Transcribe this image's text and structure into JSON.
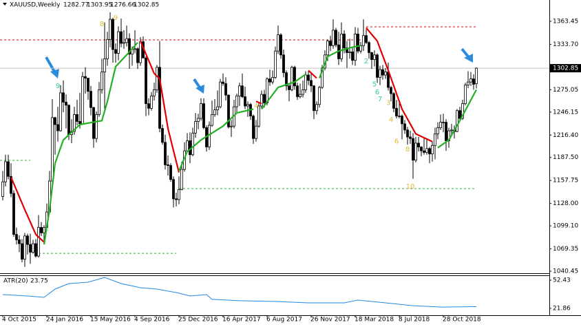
{
  "chart_data": {
    "type": "candlestick",
    "title": "XAUUSD,Weekly",
    "up_color": "#ffffff",
    "down_color": "#000000",
    "wick_color": "#000000",
    "xlim": [
      -1,
      198.5
    ],
    "ylim": [
      1037.8,
      1391.0
    ],
    "xticks": [
      {
        "value": 0,
        "label": "4 Oct 2015"
      },
      {
        "value": 16,
        "label": "24 Jan 2016"
      },
      {
        "value": 32,
        "label": "15 May 2016"
      },
      {
        "value": 48,
        "label": "4 Sep 2016"
      },
      {
        "value": 64,
        "label": "25 Dec 2016"
      },
      {
        "value": 80,
        "label": "16 Apr 2017"
      },
      {
        "value": 96,
        "label": "6 Aug 2017"
      },
      {
        "value": 112,
        "label": "26 Nov 2017"
      },
      {
        "value": 128,
        "label": "18 Mar 2018"
      },
      {
        "value": 144,
        "label": "8 Jul 2018"
      },
      {
        "value": 160,
        "label": "28 Oct 2018"
      }
    ],
    "yticks": [
      1363.45,
      {
        "value": 1333.7,
        "label": "1333.70"
      },
      1275.05,
      1246.15,
      {
        "value": 1216.4,
        "label": "1216.40"
      },
      {
        "value": 1187.5,
        "label": "1187.50"
      },
      1157.75,
      {
        "value": 1128,
        "label": "1128.00"
      },
      {
        "value": 1099.1,
        "label": "1099.10"
      },
      1069.35,
      1040.45
    ],
    "candles": [
      [
        1137,
        1170,
        1132,
        1156
      ],
      [
        1156,
        1191,
        1150,
        1182
      ],
      [
        1182,
        1191,
        1159,
        1163
      ],
      [
        1163,
        1180,
        1136,
        1141
      ],
      [
        1141,
        1145,
        1085,
        1088
      ],
      [
        1088,
        1097,
        1075,
        1081
      ],
      [
        1081,
        1087,
        1065,
        1076
      ],
      [
        1076,
        1082,
        1052,
        1056
      ],
      [
        1056,
        1090,
        1046,
        1086
      ],
      [
        1086,
        1089,
        1062,
        1075
      ],
      [
        1075,
        1089,
        1050,
        1065
      ],
      [
        1065,
        1081,
        1063,
        1076
      ],
      [
        1076,
        1082,
        1058,
        1060
      ],
      [
        1060,
        1113,
        1058,
        1097
      ],
      [
        1097,
        1104,
        1086,
        1090
      ],
      [
        1090,
        1100,
        1080,
        1097
      ],
      [
        1097,
        1128,
        1095,
        1117
      ],
      [
        1117,
        1170,
        1115,
        1157
      ],
      [
        1157,
        1263,
        1155,
        1239
      ],
      [
        1239,
        1240,
        1191,
        1230
      ],
      [
        1230,
        1253,
        1208,
        1222
      ],
      [
        1222,
        1281,
        1221,
        1271
      ],
      [
        1271,
        1287,
        1246,
        1259
      ],
      [
        1259,
        1269,
        1225,
        1255
      ],
      [
        1255,
        1256,
        1210,
        1217
      ],
      [
        1217,
        1237,
        1206,
        1221
      ],
      [
        1221,
        1253,
        1217,
        1243
      ],
      [
        1243,
        1262,
        1229,
        1234
      ],
      [
        1234,
        1271,
        1225,
        1231
      ],
      [
        1231,
        1298,
        1230,
        1292
      ],
      [
        1292,
        1304,
        1270,
        1290
      ],
      [
        1290,
        1290,
        1262,
        1273
      ],
      [
        1273,
        1280,
        1242,
        1252
      ],
      [
        1252,
        1253,
        1200,
        1212
      ],
      [
        1212,
        1247,
        1207,
        1243
      ],
      [
        1243,
        1285,
        1240,
        1275
      ],
      [
        1275,
        1315,
        1270,
        1298
      ],
      [
        1298,
        1362,
        1250,
        1315
      ],
      [
        1315,
        1350,
        1306,
        1340
      ],
      [
        1340,
        1375,
        1330,
        1366
      ],
      [
        1366,
        1368,
        1310,
        1327
      ],
      [
        1327,
        1335,
        1310,
        1322
      ],
      [
        1322,
        1357,
        1313,
        1350
      ],
      [
        1350,
        1367,
        1330,
        1335
      ],
      [
        1335,
        1352,
        1328,
        1336
      ],
      [
        1336,
        1358,
        1331,
        1341
      ],
      [
        1341,
        1348,
        1302,
        1321
      ],
      [
        1321,
        1331,
        1306,
        1327
      ],
      [
        1327,
        1352,
        1322,
        1328
      ],
      [
        1328,
        1330,
        1302,
        1310
      ],
      [
        1310,
        1343,
        1306,
        1337
      ],
      [
        1337,
        1344,
        1316,
        1316
      ],
      [
        1316,
        1318,
        1241,
        1257
      ],
      [
        1257,
        1264,
        1242,
        1251
      ],
      [
        1251,
        1272,
        1248,
        1267
      ],
      [
        1267,
        1284,
        1261,
        1275
      ],
      [
        1275,
        1307,
        1271,
        1304
      ],
      [
        1304,
        1338,
        1220,
        1225
      ],
      [
        1225,
        1230,
        1204,
        1207
      ],
      [
        1207,
        1217,
        1172,
        1178
      ],
      [
        1178,
        1190,
        1164,
        1177
      ],
      [
        1177,
        1180,
        1156,
        1159
      ],
      [
        1159,
        1163,
        1123,
        1134
      ],
      [
        1134,
        1142,
        1124,
        1133
      ],
      [
        1133,
        1163,
        1127,
        1146
      ],
      [
        1146,
        1182,
        1145,
        1172
      ],
      [
        1172,
        1207,
        1169,
        1196
      ],
      [
        1196,
        1219,
        1194,
        1209
      ],
      [
        1209,
        1220,
        1180,
        1191
      ],
      [
        1191,
        1226,
        1189,
        1219
      ],
      [
        1219,
        1245,
        1213,
        1234
      ],
      [
        1234,
        1244,
        1224,
        1238
      ],
      [
        1238,
        1264,
        1235,
        1257
      ],
      [
        1257,
        1264,
        1224,
        1226
      ],
      [
        1226,
        1229,
        1195,
        1201
      ],
      [
        1201,
        1234,
        1197,
        1229
      ],
      [
        1229,
        1261,
        1227,
        1243
      ],
      [
        1243,
        1263,
        1240,
        1249
      ],
      [
        1249,
        1274,
        1242,
        1253
      ],
      [
        1253,
        1289,
        1251,
        1285
      ],
      [
        1285,
        1296,
        1280,
        1283
      ],
      [
        1283,
        1291,
        1261,
        1268
      ],
      [
        1268,
        1269,
        1225,
        1227
      ],
      [
        1227,
        1236,
        1214,
        1228
      ],
      [
        1228,
        1262,
        1225,
        1253
      ],
      [
        1253,
        1270,
        1245,
        1267
      ],
      [
        1267,
        1284,
        1254,
        1280
      ],
      [
        1280,
        1296,
        1264,
        1266
      ],
      [
        1266,
        1279,
        1250,
        1254
      ],
      [
        1254,
        1260,
        1240,
        1256
      ],
      [
        1256,
        1258,
        1236,
        1241
      ],
      [
        1241,
        1243,
        1205,
        1212
      ],
      [
        1212,
        1236,
        1208,
        1228
      ],
      [
        1228,
        1258,
        1226,
        1254
      ],
      [
        1254,
        1274,
        1250,
        1269
      ],
      [
        1269,
        1275,
        1252,
        1258
      ],
      [
        1258,
        1291,
        1255,
        1289
      ],
      [
        1289,
        1301,
        1280,
        1285
      ],
      [
        1285,
        1300,
        1282,
        1291
      ],
      [
        1291,
        1331,
        1289,
        1325
      ],
      [
        1325,
        1358,
        1321,
        1346
      ],
      [
        1346,
        1348,
        1315,
        1320
      ],
      [
        1320,
        1327,
        1291,
        1297
      ],
      [
        1297,
        1300,
        1274,
        1280
      ],
      [
        1280,
        1282,
        1260,
        1275
      ],
      [
        1275,
        1306,
        1273,
        1304
      ],
      [
        1304,
        1306,
        1275,
        1280
      ],
      [
        1280,
        1284,
        1262,
        1266
      ],
      [
        1266,
        1283,
        1264,
        1269
      ],
      [
        1269,
        1287,
        1265,
        1275
      ],
      [
        1275,
        1299,
        1271,
        1294
      ],
      [
        1294,
        1299,
        1281,
        1287
      ],
      [
        1287,
        1298,
        1272,
        1280
      ],
      [
        1280,
        1281,
        1237,
        1248
      ],
      [
        1248,
        1260,
        1243,
        1256
      ],
      [
        1256,
        1280,
        1252,
        1278
      ],
      [
        1278,
        1307,
        1276,
        1303
      ],
      [
        1303,
        1326,
        1300,
        1320
      ],
      [
        1320,
        1340,
        1312,
        1338
      ],
      [
        1338,
        1345,
        1325,
        1332
      ],
      [
        1332,
        1366,
        1328,
        1352
      ],
      [
        1352,
        1355,
        1330,
        1333
      ],
      [
        1333,
        1350,
        1307,
        1315
      ],
      [
        1315,
        1362,
        1311,
        1347
      ],
      [
        1347,
        1352,
        1322,
        1329
      ],
      [
        1329,
        1338,
        1303,
        1323
      ],
      [
        1323,
        1341,
        1315,
        1324
      ],
      [
        1324,
        1330,
        1307,
        1313
      ],
      [
        1313,
        1356,
        1306,
        1347
      ],
      [
        1347,
        1355,
        1322,
        1325
      ],
      [
        1325,
        1337,
        1322,
        1332
      ],
      [
        1332,
        1366,
        1325,
        1345
      ],
      [
        1345,
        1353,
        1334,
        1336
      ],
      [
        1336,
        1338,
        1315,
        1323
      ],
      [
        1323,
        1324,
        1302,
        1314
      ],
      [
        1314,
        1326,
        1305,
        1320
      ],
      [
        1320,
        1322,
        1284,
        1291
      ],
      [
        1291,
        1306,
        1281,
        1301
      ],
      [
        1301,
        1307,
        1288,
        1294
      ],
      [
        1294,
        1303,
        1289,
        1298
      ],
      [
        1298,
        1310,
        1274,
        1278
      ],
      [
        1278,
        1280,
        1260,
        1270
      ],
      [
        1270,
        1272,
        1246,
        1251
      ],
      [
        1251,
        1262,
        1238,
        1241
      ],
      [
        1241,
        1261,
        1238,
        1241
      ],
      [
        1241,
        1243,
        1211,
        1231
      ],
      [
        1231,
        1236,
        1218,
        1223
      ],
      [
        1223,
        1227,
        1204,
        1214
      ],
      [
        1214,
        1222,
        1205,
        1212
      ],
      [
        1212,
        1219,
        1160,
        1184
      ],
      [
        1184,
        1214,
        1181,
        1206
      ],
      [
        1206,
        1214,
        1195,
        1201
      ],
      [
        1201,
        1202,
        1189,
        1196
      ],
      [
        1196,
        1212,
        1191,
        1194
      ],
      [
        1194,
        1211,
        1191,
        1199
      ],
      [
        1199,
        1201,
        1180,
        1192
      ],
      [
        1192,
        1208,
        1182,
        1203
      ],
      [
        1203,
        1226,
        1185,
        1218
      ],
      [
        1218,
        1233,
        1211,
        1226
      ],
      [
        1226,
        1243,
        1223,
        1233
      ],
      [
        1233,
        1244,
        1220,
        1233
      ],
      [
        1233,
        1237,
        1196,
        1209
      ],
      [
        1209,
        1226,
        1200,
        1222
      ],
      [
        1222,
        1231,
        1215,
        1223
      ],
      [
        1223,
        1229,
        1212,
        1221
      ],
      [
        1221,
        1250,
        1220,
        1248
      ],
      [
        1248,
        1253,
        1234,
        1238
      ],
      [
        1238,
        1262,
        1236,
        1257
      ],
      [
        1257,
        1284,
        1255,
        1281
      ],
      [
        1281,
        1299,
        1277,
        1285
      ],
      [
        1285,
        1298,
        1280,
        1289
      ],
      [
        1289,
        1295,
        1275,
        1282
      ],
      [
        1282.77,
        1303.95,
        1276.66,
        1302.85
      ]
    ],
    "overlays": [
      {
        "color": "#e00000",
        "x": [
          3,
          8,
          12,
          15
        ],
        "values": [
          1162,
          1120,
          1088,
          1078
        ]
      },
      {
        "color": "#22b022",
        "x": [
          15,
          17,
          19,
          22,
          28,
          36,
          38,
          41,
          45,
          49
        ],
        "values": [
          1075,
          1120,
          1180,
          1210,
          1230,
          1235,
          1260,
          1305,
          1320,
          1336
        ]
      },
      {
        "color": "#e00000",
        "x": [
          50,
          55,
          57,
          60,
          64
        ],
        "values": [
          1338,
          1296,
          1289,
          1225,
          1168
        ]
      },
      {
        "color": "#22b022",
        "x": [
          64,
          67,
          72,
          80,
          85,
          91
        ],
        "values": [
          1170,
          1195,
          1210,
          1228,
          1245,
          1250
        ]
      },
      {
        "color": "#e00000",
        "x": [
          92,
          94
        ],
        "values": [
          1260,
          1257
        ]
      },
      {
        "color": "#22b022",
        "x": [
          94,
          100,
          106,
          110
        ],
        "values": [
          1250,
          1278,
          1285,
          1295
        ]
      },
      {
        "color": "#e00000",
        "x": [
          111,
          114
        ],
        "values": [
          1300,
          1290
        ]
      },
      {
        "color": "#22b022",
        "x": [
          115,
          118,
          122,
          127,
          130
        ],
        "values": [
          1290,
          1318,
          1325,
          1330,
          1332
        ]
      },
      {
        "color": "#e00000",
        "x": [
          132,
          136,
          140,
          145,
          150,
          156
        ],
        "values": [
          1355,
          1338,
          1300,
          1250,
          1218,
          1208
        ]
      },
      {
        "color": "#22b022",
        "x": [
          158,
          162,
          166,
          172
        ],
        "values": [
          1200,
          1210,
          1235,
          1275
        ]
      }
    ],
    "levels": [
      {
        "color": "#e00000",
        "value": 1339.4,
        "from": -1,
        "to": 130
      },
      {
        "color": "#e00000",
        "value": 1356.3,
        "from": 132,
        "to": 172
      },
      {
        "color": "#22b022",
        "value": 1183.7,
        "from": -1,
        "to": 10
      },
      {
        "color": "#22b022",
        "value": 1063.5,
        "from": 13,
        "to": 63
      },
      {
        "color": "#22b022",
        "value": 1147.2,
        "from": 64,
        "to": 172
      }
    ],
    "annotations": [
      {
        "text": "10",
        "x": 148,
        "y": 1150,
        "color": "#e0b830"
      },
      {
        "text": "8",
        "x": 147,
        "y": 1198,
        "color": "#e0b830"
      },
      {
        "text": "6",
        "x": 143,
        "y": 1208,
        "color": "#e0b830"
      },
      {
        "text": "4",
        "x": 141,
        "y": 1236,
        "color": "#e0b830"
      },
      {
        "text": "3",
        "x": 140,
        "y": 1258,
        "color": "#e0b830"
      },
      {
        "text": "2",
        "x": 132,
        "y": 1312,
        "color": "#30c8a0"
      },
      {
        "text": "5",
        "x": 135,
        "y": 1282,
        "color": "#30c8a0"
      },
      {
        "text": "6",
        "x": 136,
        "y": 1272,
        "color": "#30c8a0"
      },
      {
        "text": "7",
        "x": 137,
        "y": 1263,
        "color": "#30c8a0"
      },
      {
        "text": "9",
        "x": 41,
        "y": 1368,
        "color": "#e0b830"
      },
      {
        "text": "8",
        "x": 36,
        "y": 1360,
        "color": "#e0b830"
      },
      {
        "text": "4",
        "x": 92,
        "y": 1254,
        "color": "#e0b830"
      },
      {
        "text": "9",
        "x": 20,
        "y": 1280,
        "color": "#30c8a0"
      }
    ],
    "atr": {
      "title": "ATR(20)",
      "color": "#1e88e5",
      "ylim": [
        14.4,
        57.65
      ],
      "yticks": [
        52.43,
        21.86
      ],
      "x": [
        0,
        9,
        15,
        19,
        24,
        31,
        37,
        43,
        50,
        56,
        63,
        68,
        74,
        76,
        86,
        99,
        111,
        124,
        129,
        139,
        149,
        159,
        172
      ],
      "values": [
        36.8,
        35.3,
        33.8,
        42.7,
        48.7,
        50.2,
        55.4,
        48.7,
        44.2,
        42.7,
        39.0,
        35.3,
        36.8,
        31.6,
        30.1,
        29.3,
        27.8,
        27.8,
        30.8,
        27.8,
        24.8,
        23.3,
        23.75
      ]
    }
  }
}
